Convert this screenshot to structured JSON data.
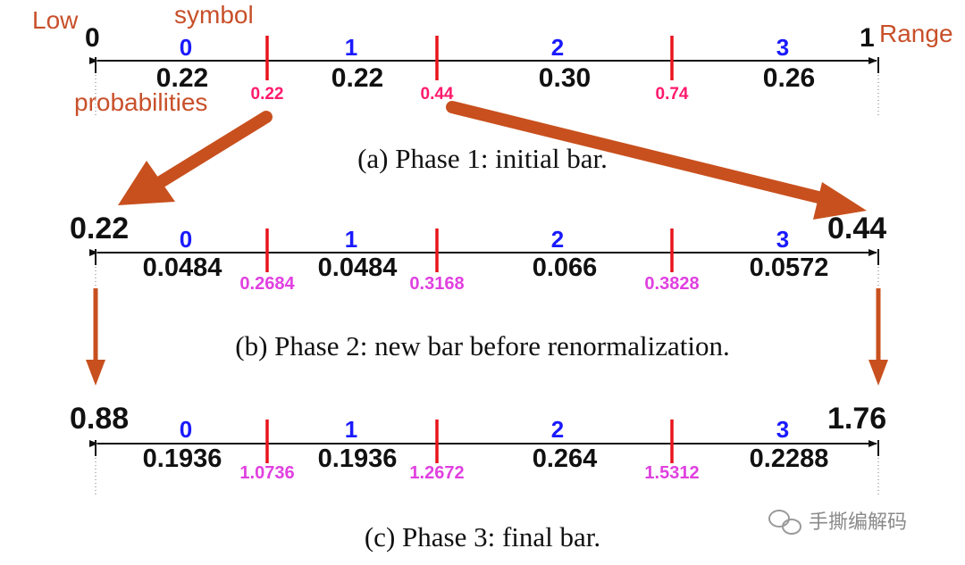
{
  "annotations": {
    "low": "Low",
    "symbol": "symbol",
    "range": "Range",
    "probabilities": "probabilities"
  },
  "phases": [
    {
      "low_label": "0",
      "high_label": "1",
      "symbols": [
        "0",
        "1",
        "2",
        "3"
      ],
      "values": [
        "0.22",
        "0.22",
        "0.30",
        "0.26"
      ],
      "boundaries": [
        "0.22",
        "0.44",
        "0.74"
      ],
      "caption": "(a) Phase 1: initial bar."
    },
    {
      "low_label": "0.22",
      "high_label": "0.44",
      "symbols": [
        "0",
        "1",
        "2",
        "3"
      ],
      "values": [
        "0.0484",
        "0.0484",
        "0.066",
        "0.0572"
      ],
      "boundaries": [
        "0.2684",
        "0.3168",
        "0.3828"
      ],
      "caption": "(b) Phase 2: new bar before renormalization."
    },
    {
      "low_label": "0.88",
      "high_label": "1.76",
      "symbols": [
        "0",
        "1",
        "2",
        "3"
      ],
      "values": [
        "0.1936",
        "0.1936",
        "0.264",
        "0.2288"
      ],
      "boundaries": [
        "1.0736",
        "1.2672",
        "1.5312"
      ],
      "caption": "(c) Phase 3: final bar."
    }
  ],
  "watermark": "手撕编解码",
  "colors": {
    "annotation": "#c8502a",
    "arrow": "#c8501e",
    "symbol": "#1a1aff",
    "tick": "#e8141c",
    "boundary_phase1": "#ff1a6c",
    "boundary_other": "#e040e0",
    "text": "#111111"
  }
}
